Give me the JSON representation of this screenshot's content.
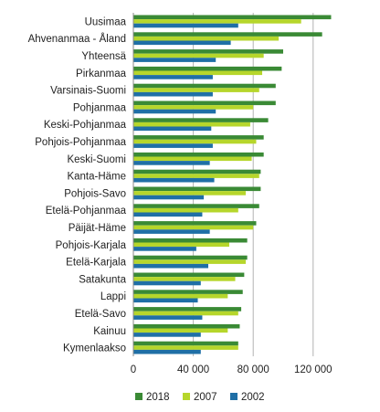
{
  "chart_data": {
    "type": "bar",
    "orientation": "horizontal",
    "title": "",
    "xlabel": "",
    "ylabel": "",
    "categories": [
      "Uusimaa",
      "Ahvenanmaa - Åland",
      "Yhteensä",
      "Pirkanmaa",
      "Varsinais-Suomi",
      "Pohjanmaa",
      "Keski-Pohjanmaa",
      "Pohjois-Pohjanmaa",
      "Keski-Suomi",
      "Kanta-Häme",
      "Pohjois-Savo",
      "Etelä-Pohjanmaa",
      "Päijät-Häme",
      "Pohjois-Karjala",
      "Etelä-Karjala",
      "Satakunta",
      "Lappi",
      "Etelä-Savo",
      "Kainuu",
      "Kymenlaakso"
    ],
    "series": [
      {
        "name": "2018",
        "color": "#3a8a35",
        "values": [
          132000,
          126000,
          100000,
          99000,
          95000,
          95000,
          90000,
          87000,
          87000,
          85000,
          85000,
          84000,
          82000,
          76000,
          76000,
          74000,
          73000,
          72000,
          71000,
          70000
        ]
      },
      {
        "name": "2007",
        "color": "#b6d62b",
        "values": [
          112000,
          97000,
          87000,
          86000,
          84000,
          80000,
          78000,
          82000,
          79000,
          84000,
          75000,
          70000,
          80000,
          64000,
          75000,
          68000,
          63000,
          70000,
          63000,
          70000
        ]
      },
      {
        "name": "2002",
        "color": "#1f6fa6",
        "values": [
          70000,
          65000,
          55000,
          53000,
          53000,
          55000,
          52000,
          53000,
          51000,
          54000,
          47000,
          46000,
          51000,
          42000,
          50000,
          45000,
          43000,
          46000,
          45000,
          45000
        ]
      }
    ],
    "xlim": [
      0,
      150000
    ],
    "x_ticks": [
      0,
      40000,
      80000,
      120000
    ],
    "x_tick_labels": [
      "0",
      "40 000",
      "80 000",
      "120 000"
    ],
    "grid": true,
    "legend_position": "bottom"
  }
}
